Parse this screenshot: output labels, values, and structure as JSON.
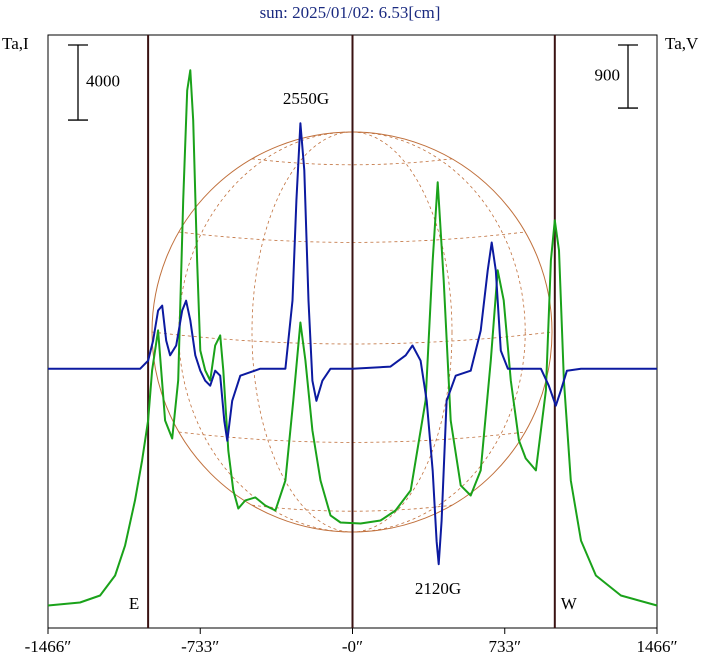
{
  "chart_data": {
    "type": "line",
    "title": "sun: 2025/01/02: 6.53[cm]",
    "ylabel": "Ta,I",
    "y2label": "Ta,V",
    "xlim": [
      -1466,
      1466
    ],
    "xticks": [
      {
        "value": -1466,
        "label": "-1466″"
      },
      {
        "value": -733,
        "label": "-733″"
      },
      {
        "value": 0,
        "label": "-0″"
      },
      {
        "value": 733,
        "label": "733″"
      },
      {
        "value": 1466,
        "label": "1466″"
      }
    ],
    "ylim": [
      -1200,
      30400
    ],
    "y2lim": [
      -3700,
      4760
    ],
    "markers": [
      {
        "value": -984,
        "label": "E"
      },
      {
        "value": 0
      },
      {
        "value": 974,
        "label": "W"
      }
    ],
    "scale_bars": [
      {
        "axis": "y",
        "value": 4000
      },
      {
        "axis": "y2",
        "value": 900
      }
    ],
    "annotations": [
      "2550G",
      "2120G"
    ],
    "series": [
      {
        "color": "#1aa21a",
        "axis": "y",
        "x": [
          -1466,
          -1312,
          -1215,
          -1143,
          -1095,
          -1047,
          -1013,
          -984,
          -965,
          -936,
          -902,
          -868,
          -839,
          -815,
          -796,
          -781,
          -767,
          -748,
          -733,
          -709,
          -685,
          -661,
          -637,
          -622,
          -598,
          -574,
          -550,
          -516,
          -468,
          -420,
          -371,
          -323,
          -285,
          -251,
          -227,
          -193,
          -154,
          -106,
          -58,
          39,
          135,
          207,
          280,
          352,
          386,
          410,
          439,
          473,
          521,
          569,
          617,
          666,
          699,
          728,
          762,
          801,
          834,
          883,
          931,
          955,
          974,
          994,
          1018,
          1051,
          1100,
          1172,
          1292,
          1466
        ],
        "values": [
          0,
          160,
          533,
          1600,
          3200,
          5600,
          7730,
          9860,
          12530,
          14660,
          9860,
          8900,
          12000,
          21590,
          27450,
          28520,
          25850,
          18390,
          13590,
          12530,
          11990,
          13860,
          14390,
          12530,
          8260,
          6130,
          5170,
          5600,
          5760,
          5330,
          5060,
          6660,
          10930,
          15080,
          13060,
          9330,
          6660,
          4800,
          4420,
          4370,
          4530,
          5060,
          6130,
          10930,
          18390,
          22550,
          17320,
          9860,
          6400,
          5860,
          7200,
          13060,
          17860,
          16260,
          11990,
          8800,
          7840,
          7200,
          11460,
          18390,
          20520,
          18920,
          11990,
          6660,
          3460,
          1600,
          530,
          0
        ]
      },
      {
        "color": "#0c1aa0",
        "axis": "y2",
        "x": [
          -1466,
          -1022,
          -984,
          -960,
          -936,
          -916,
          -897,
          -878,
          -849,
          -820,
          -801,
          -781,
          -757,
          -733,
          -709,
          -685,
          -661,
          -637,
          -617,
          -603,
          -579,
          -540,
          -444,
          -323,
          -289,
          -270,
          -251,
          -232,
          -212,
          -193,
          -174,
          -145,
          -106,
          0,
          183,
          256,
          289,
          328,
          357,
          386,
          405,
          415,
          429,
          453,
          497,
          569,
          617,
          651,
          670,
          690,
          714,
          748,
          907,
          945,
          979,
          1003,
          1032,
          1100,
          1466
        ],
        "values": [
          0,
          0,
          114,
          400,
          830,
          900,
          400,
          190,
          330,
          830,
          970,
          690,
          190,
          -29,
          -172,
          -243,
          -29,
          -100,
          -744,
          -1030,
          -458,
          -100,
          0,
          0,
          972,
          2400,
          3500,
          2830,
          970,
          -172,
          -458,
          -172,
          0,
          0,
          29,
          190,
          330,
          114,
          -458,
          -1460,
          -2460,
          -2790,
          -2170,
          -458,
          -100,
          -29,
          543,
          1400,
          1800,
          1400,
          257,
          0,
          0,
          -243,
          -529,
          -315,
          -29,
          0,
          0
        ]
      }
    ]
  }
}
